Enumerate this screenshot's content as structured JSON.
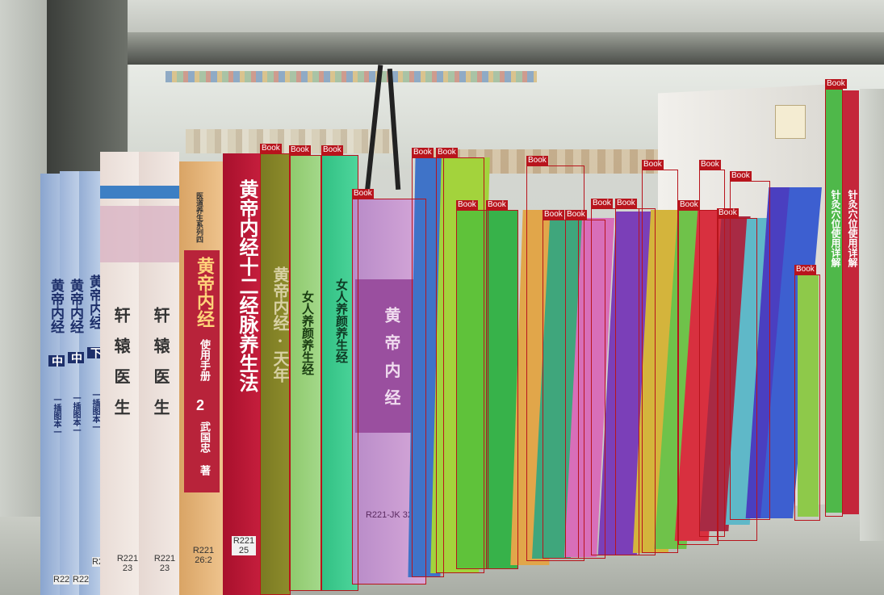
{
  "scene": {
    "description_labels": [
      "Book"
    ],
    "detections": [
      {
        "label": "Book"
      },
      {
        "label": "Book"
      },
      {
        "label": "Book"
      },
      {
        "label": "Book"
      },
      {
        "label": "Book"
      },
      {
        "label": "Book"
      },
      {
        "label": "Book"
      },
      {
        "label": "Book"
      },
      {
        "label": "Book"
      },
      {
        "label": "Book"
      },
      {
        "label": "Book"
      },
      {
        "label": "Book"
      },
      {
        "label": "Book"
      },
      {
        "label": "Book"
      },
      {
        "label": "Book"
      },
      {
        "label": "Book"
      },
      {
        "label": "Book"
      },
      {
        "label": "Book"
      },
      {
        "label": "Book"
      },
      {
        "label": "Book"
      }
    ]
  },
  "books": {
    "left_blue_title": "黄帝内经",
    "left_blue_parts": [
      "中",
      "中",
      "下"
    ],
    "left_blue_sub": "一插图本一",
    "cream_title": "轩辕医生",
    "orange_series": "医道养生系列四",
    "orange_title": "黄帝内经",
    "orange_sub": "使用手册",
    "orange_num": "2",
    "orange_author": "武国忠 著",
    "orange_call": "R221 26:2",
    "red_title": "黄帝内经十二经脉养生法",
    "red_call": "R221 25",
    "olive_title": "黄帝内经·天年",
    "green_title": "女人养颜养生经",
    "purple_title": "黄帝内经",
    "purple_call": "R221-JK 32",
    "right_title": "针灸穴位使用详解",
    "cream_calls": [
      "R221 23",
      "R221 23"
    ],
    "blue_calls": [
      "R22",
      "R22",
      "R22"
    ]
  },
  "colors": {
    "bbox": "#b8141c",
    "shelf": "#b8bcb4"
  }
}
